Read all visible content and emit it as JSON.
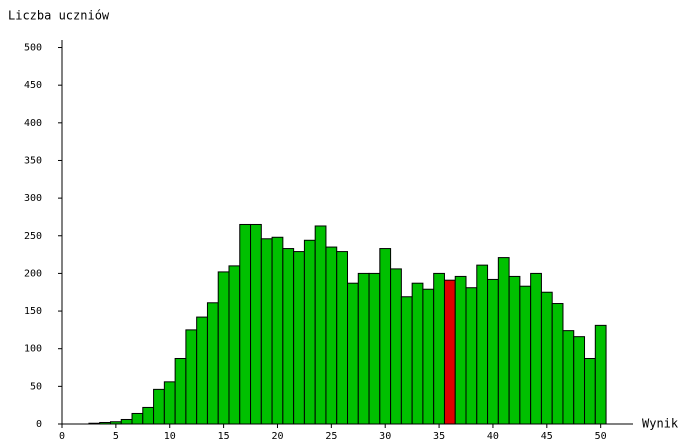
{
  "chart_data": {
    "type": "bar",
    "y_label": "Liczba uczniów",
    "x_label": "Wynik",
    "x": [
      0,
      1,
      2,
      3,
      4,
      5,
      6,
      7,
      8,
      9,
      10,
      11,
      12,
      13,
      14,
      15,
      16,
      17,
      18,
      19,
      20,
      21,
      22,
      23,
      24,
      25,
      26,
      27,
      28,
      29,
      30,
      31,
      32,
      33,
      34,
      35,
      36,
      37,
      38,
      39,
      40,
      41,
      42,
      43,
      44,
      45,
      46,
      47,
      48,
      49,
      50
    ],
    "values": [
      0,
      0,
      0,
      1,
      2,
      3,
      6,
      14,
      22,
      46,
      56,
      87,
      125,
      142,
      161,
      202,
      210,
      265,
      265,
      246,
      248,
      233,
      229,
      244,
      263,
      235,
      229,
      187,
      200,
      200,
      233,
      206,
      169,
      187,
      179,
      200,
      191,
      196,
      181,
      211,
      192,
      221,
      196,
      183,
      200,
      175,
      160,
      124,
      116,
      87,
      131
    ],
    "color": "#00c000",
    "highlight_x": 36,
    "highlight_color": "#e00000",
    "xlim": [
      0,
      53
    ],
    "xticks": [
      0,
      5,
      10,
      15,
      20,
      25,
      30,
      35,
      40,
      45,
      50
    ],
    "ylim": [
      0,
      510
    ],
    "yticks": [
      0,
      50,
      100,
      150,
      200,
      250,
      300,
      350,
      400,
      450,
      500
    ]
  }
}
